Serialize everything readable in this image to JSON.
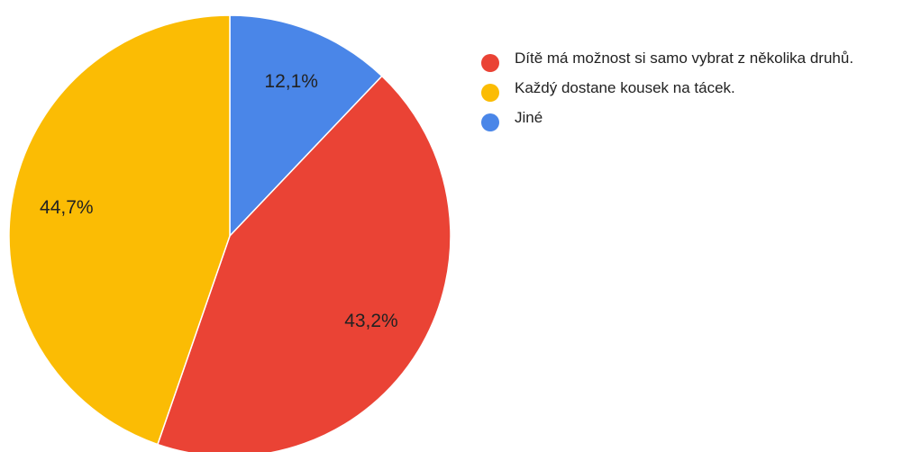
{
  "chart_data": {
    "type": "pie",
    "categories": [
      "Dítě má možnost si samo vybrat z několika druhů.",
      "Každý dostane kousek na tácek.",
      "Jiné"
    ],
    "values": [
      43.2,
      44.7,
      12.1
    ],
    "value_labels": [
      "43,2%",
      "44,7%",
      "12,1%"
    ],
    "colors": [
      "#ea4335",
      "#fbbc04",
      "#4a86e8"
    ]
  }
}
